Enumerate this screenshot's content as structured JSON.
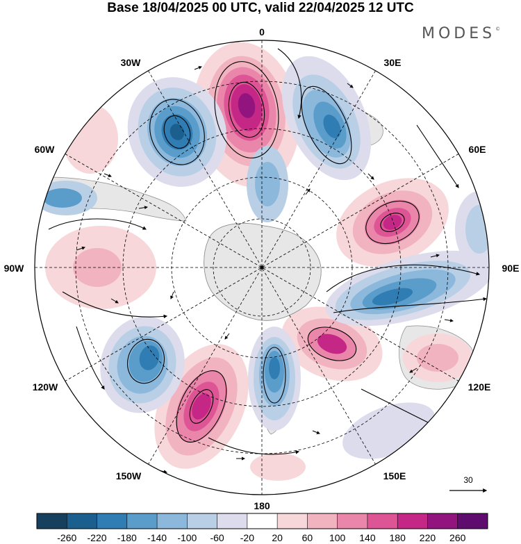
{
  "title": "Base 18/04/2025 00 UTC, valid 22/04/2025 12 UTC",
  "logo": "MODES",
  "logo_mark": "©",
  "projection": "south-polar-stereographic",
  "longitude_labels": [
    {
      "text": "0",
      "lon": 0
    },
    {
      "text": "30E",
      "lon": 30
    },
    {
      "text": "60E",
      "lon": 60
    },
    {
      "text": "90E",
      "lon": 90
    },
    {
      "text": "120E",
      "lon": 120
    },
    {
      "text": "150E",
      "lon": 150
    },
    {
      "text": "180",
      "lon": 180
    },
    {
      "text": "150W",
      "lon": -150
    },
    {
      "text": "120W",
      "lon": -120
    },
    {
      "text": "90W",
      "lon": -90
    },
    {
      "text": "60W",
      "lon": -60
    },
    {
      "text": "30W",
      "lon": -30
    }
  ],
  "reference_vector": {
    "label": "30"
  },
  "colorbar": {
    "ticks": [
      "-260",
      "-220",
      "-180",
      "-140",
      "-100",
      "-60",
      "-20",
      "20",
      "60",
      "100",
      "140",
      "180",
      "220",
      "260"
    ],
    "colors": [
      "#17405e",
      "#1b5f8e",
      "#2f7db3",
      "#5a9dcb",
      "#8cb8dc",
      "#b9cfe6",
      "#dcdcec",
      "#ffffff",
      "#f7d7d9",
      "#f2b3c0",
      "#ea86aa",
      "#de5595",
      "#c42786",
      "#91147f",
      "#5e0d6e"
    ]
  },
  "land_color": "#e7e7e7"
}
